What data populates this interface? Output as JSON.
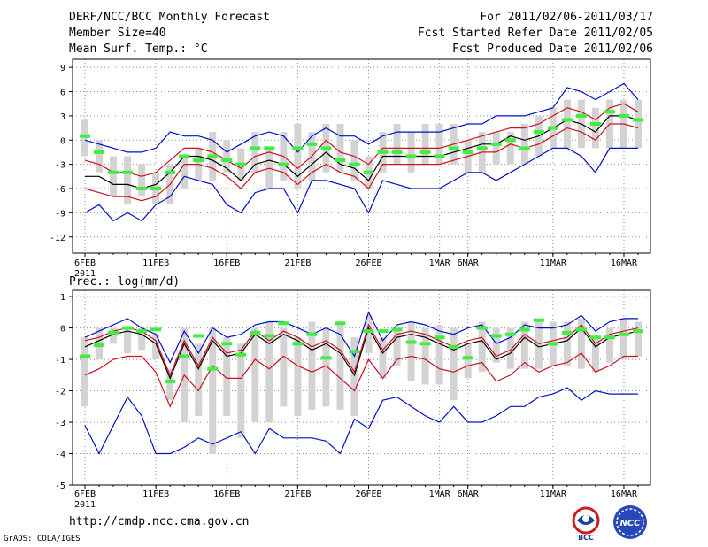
{
  "header": {
    "title": "DERF/NCC/BCC Monthly Forecast",
    "member_size": "Member Size=40",
    "variable": "Mean Surf. Temp.: °C",
    "period": "For 2011/02/06-2011/03/17",
    "refer_date": "Fcst Started Refer Date 2011/02/05",
    "produced_date": "Fcst Produced Date 2011/02/06"
  },
  "footer": {
    "url": "http://cmdp.ncc.cma.gov.cn",
    "grads": "GrADS: COLA/IGES",
    "logo_left_text": "BCC",
    "logo_right_text": "NCC"
  },
  "colors": {
    "grid": "#8c8c8c",
    "box": "#d3d3d3",
    "mean": "#000000",
    "inner": "#d01020",
    "outer": "#0010c8",
    "obs": "#40ee40"
  },
  "chart_data": [
    {
      "type": "line",
      "title": "Mean Surf. Temp.: °C",
      "ylim": [
        -14,
        10
      ],
      "yticks": [
        9,
        6,
        3,
        0,
        -3,
        -6,
        -9,
        -12
      ],
      "x_day_range": [
        0,
        40
      ],
      "xtick_days": [
        0,
        5,
        10,
        15,
        20,
        25,
        27,
        33,
        38
      ],
      "xtick_labels": [
        "6FEB",
        "11FEB",
        "16FEB",
        "21FEB",
        "26FEB",
        "1MAR",
        "6MAR",
        "11MAR",
        "16MAR"
      ],
      "xtick_year": "2011",
      "days": [
        0,
        1,
        2,
        3,
        4,
        5,
        6,
        7,
        8,
        9,
        10,
        11,
        12,
        13,
        14,
        15,
        16,
        17,
        18,
        19,
        20,
        21,
        22,
        23,
        24,
        25,
        26,
        27,
        28,
        29,
        30,
        31,
        32,
        33,
        34,
        35,
        36,
        37,
        38,
        39
      ],
      "series": [
        {
          "name": "mean",
          "values": [
            -4.5,
            -4.5,
            -5.5,
            -5.5,
            -6,
            -5.5,
            -4,
            -2,
            -2,
            -2.5,
            -3.5,
            -5,
            -3,
            -2.5,
            -3,
            -4.5,
            -3,
            -1.5,
            -3,
            -3.5,
            -5,
            -2,
            -2,
            -2,
            -2,
            -2,
            -1.5,
            -1,
            -0.5,
            -0.5,
            0.5,
            0,
            0.5,
            1.5,
            2.5,
            2,
            1,
            3,
            3,
            2.5
          ]
        },
        {
          "name": "upper",
          "values": [
            -2.5,
            -3,
            -4,
            -4,
            -4.5,
            -4,
            -2.5,
            -1,
            -1,
            -1.5,
            -2.5,
            -3.5,
            -2,
            -1.5,
            -2,
            -3.5,
            -2,
            0,
            -1.5,
            -2,
            -3,
            -1,
            -1,
            -1,
            -1,
            -1,
            -0.5,
            0,
            0.5,
            1,
            1.5,
            1.5,
            2,
            3,
            4,
            3.5,
            2.5,
            4,
            4.5,
            3.5
          ]
        },
        {
          "name": "lower",
          "values": [
            -6,
            -6.5,
            -7,
            -7,
            -7.5,
            -7,
            -5.5,
            -3,
            -3,
            -3.5,
            -4.5,
            -6,
            -4,
            -3.5,
            -4,
            -5.5,
            -4,
            -3,
            -4,
            -4.5,
            -6,
            -3,
            -3,
            -3,
            -3,
            -3,
            -2.5,
            -2,
            -1.5,
            -1.5,
            -0.5,
            -1,
            -0.5,
            0.5,
            1.5,
            1,
            0,
            2,
            2,
            1.5
          ]
        },
        {
          "name": "max",
          "values": [
            0,
            -0.5,
            -1,
            -1.5,
            -1.5,
            -1,
            1,
            0.5,
            0.5,
            0,
            -1.5,
            -0.5,
            0.5,
            1,
            0.5,
            -1.5,
            0.5,
            1.5,
            0.5,
            0.5,
            -0.5,
            0.5,
            1,
            1,
            1,
            1,
            1.5,
            2,
            2,
            3,
            3,
            3,
            3.5,
            4,
            6.5,
            6,
            5,
            6,
            7,
            5
          ]
        },
        {
          "name": "min",
          "values": [
            -9,
            -8,
            -10,
            -9,
            -10,
            -8,
            -7,
            -4.5,
            -5,
            -5.5,
            -8,
            -9,
            -6.5,
            -6,
            -6,
            -9,
            -5,
            -5,
            -5.5,
            -6,
            -9,
            -5,
            -5.5,
            -6,
            -6,
            -6,
            -5,
            -4,
            -4,
            -5,
            -4,
            -3,
            -2,
            -1,
            -1,
            -2,
            -4,
            -1,
            -1,
            -1
          ]
        },
        {
          "name": "obs",
          "values": [
            0.5,
            -1.5,
            -4,
            -4,
            -6,
            -6,
            -4,
            -2,
            -2.5,
            -2,
            -2.5,
            -3,
            -1,
            -1,
            -3,
            -1,
            -0.5,
            -1,
            -2.5,
            -3,
            -4,
            -1.5,
            -1.5,
            -2,
            -1.5,
            -2,
            -1,
            -1.5,
            -1,
            -0.5,
            0,
            -1,
            1,
            1.5,
            2.5,
            3,
            2,
            3.5,
            3,
            2.5
          ]
        }
      ],
      "boxes": [
        [
          -2,
          2.5
        ],
        [
          -4,
          0
        ],
        [
          -7,
          -2
        ],
        [
          -8,
          -2
        ],
        [
          -7,
          -3
        ],
        [
          -8,
          -4
        ],
        [
          -8,
          -3
        ],
        [
          -6,
          -2
        ],
        [
          -5,
          -1
        ],
        [
          -5,
          1
        ],
        [
          -4,
          0
        ],
        [
          -5,
          -1
        ],
        [
          -4,
          1
        ],
        [
          -6,
          -1
        ],
        [
          -5,
          1
        ],
        [
          -6,
          2
        ],
        [
          -5,
          1
        ],
        [
          -4,
          2
        ],
        [
          -4,
          2
        ],
        [
          -5,
          0
        ],
        [
          -6,
          -2
        ],
        [
          -4,
          1
        ],
        [
          -3,
          2
        ],
        [
          -4,
          1
        ],
        [
          -3,
          2
        ],
        [
          -3,
          2
        ],
        [
          -3,
          2
        ],
        [
          -4,
          0
        ],
        [
          -4,
          1
        ],
        [
          -3,
          1
        ],
        [
          -3,
          1
        ],
        [
          -3,
          2
        ],
        [
          -2,
          3
        ],
        [
          -1,
          4
        ],
        [
          -1,
          5
        ],
        [
          -1,
          5
        ],
        [
          -1,
          4
        ],
        [
          -1,
          5
        ],
        [
          -1,
          5
        ],
        [
          -1,
          5
        ]
      ]
    },
    {
      "type": "line",
      "title": "Prec.: log(mm/d)",
      "ylim": [
        -5,
        1.2
      ],
      "yticks": [
        1,
        0,
        -1,
        -2,
        -3,
        -4,
        -5
      ],
      "x_day_range": [
        0,
        40
      ],
      "xtick_days": [
        0,
        5,
        10,
        15,
        20,
        25,
        27,
        33,
        38
      ],
      "xtick_labels": [
        "6FEB",
        "11FEB",
        "16FEB",
        "21FEB",
        "26FEB",
        "1MAR",
        "6MAR",
        "11MAR",
        "16MAR"
      ],
      "xtick_year": "2011",
      "days": [
        0,
        1,
        2,
        3,
        4,
        5,
        6,
        7,
        8,
        9,
        10,
        11,
        12,
        13,
        14,
        15,
        16,
        17,
        18,
        19,
        20,
        21,
        22,
        23,
        24,
        25,
        26,
        27,
        28,
        29,
        30,
        31,
        32,
        33,
        34,
        35,
        36,
        37,
        38,
        39
      ],
      "series": [
        {
          "name": "mean",
          "values": [
            -0.6,
            -0.4,
            -0.2,
            -0.1,
            -0.2,
            -0.5,
            -1.6,
            -0.5,
            -1.3,
            -0.4,
            -0.9,
            -0.8,
            -0.2,
            -0.5,
            -0.2,
            -0.4,
            -0.7,
            -0.5,
            -0.8,
            -1.5,
            0,
            -0.8,
            -0.3,
            -0.2,
            -0.3,
            -0.5,
            -0.7,
            -0.5,
            -0.4,
            -1,
            -0.8,
            -0.3,
            -0.6,
            -0.5,
            -0.4,
            0,
            -0.6,
            -0.3,
            -0.2,
            -0.1
          ]
        },
        {
          "name": "upper",
          "values": [
            -0.4,
            -0.3,
            -0.1,
            0,
            -0.1,
            -0.4,
            -1.5,
            -0.4,
            -1.2,
            -0.3,
            -0.8,
            -0.7,
            -0.1,
            -0.4,
            -0.1,
            -0.3,
            -0.6,
            -0.4,
            -0.7,
            -1.4,
            0.1,
            -0.7,
            -0.2,
            -0.1,
            -0.2,
            -0.4,
            -0.6,
            -0.4,
            -0.3,
            -0.9,
            -0.7,
            -0.2,
            -0.5,
            -0.4,
            -0.3,
            0.1,
            -0.5,
            -0.2,
            -0.1,
            0
          ]
        },
        {
          "name": "lower",
          "values": [
            -1.5,
            -1.3,
            -1.0,
            -0.9,
            -0.9,
            -1.4,
            -2.5,
            -1.5,
            -2.0,
            -1.2,
            -1.6,
            -1.6,
            -1.0,
            -1.3,
            -0.9,
            -1.2,
            -1.4,
            -1.2,
            -1.6,
            -2.0,
            -1.0,
            -1.6,
            -1.0,
            -0.9,
            -1.0,
            -1.3,
            -1.4,
            -1.2,
            -1.1,
            -1.7,
            -1.5,
            -1.1,
            -1.4,
            -1.2,
            -1.1,
            -0.8,
            -1.4,
            -1.2,
            -0.9,
            -0.9
          ]
        },
        {
          "name": "max",
          "values": [
            -0.3,
            -0.1,
            0.1,
            0.3,
            0,
            -0.2,
            -1.1,
            -0.1,
            -0.8,
            0,
            -0.3,
            -0.2,
            0.1,
            0.2,
            0.2,
            0,
            -0.2,
            0,
            -0.2,
            -0.9,
            0.5,
            -0.4,
            0.1,
            0.2,
            0.1,
            -0.1,
            -0.2,
            0,
            0.1,
            -0.5,
            -0.3,
            0.1,
            0,
            0,
            0.1,
            0.4,
            -0.1,
            0.2,
            0.3,
            0.3
          ]
        },
        {
          "name": "min",
          "values": [
            -3.1,
            -4.0,
            -3.1,
            -2.2,
            -2.8,
            -4.0,
            -4.0,
            -3.8,
            -3.5,
            -3.7,
            -3.5,
            -3.3,
            -4.0,
            -3.2,
            -3.5,
            -3.5,
            -3.5,
            -3.6,
            -4.0,
            -2.9,
            -3.2,
            -2.3,
            -2.2,
            -2.5,
            -2.8,
            -3.0,
            -2.5,
            -3.0,
            -3.0,
            -2.8,
            -2.5,
            -2.5,
            -2.2,
            -2.1,
            -1.9,
            -2.3,
            -2.0,
            -2.1,
            -2.1,
            -2.1
          ]
        },
        {
          "name": "obs",
          "values": [
            -0.9,
            -0.55,
            -0.15,
            0,
            -0.1,
            -0.05,
            -1.7,
            -0.9,
            -0.25,
            -1.3,
            -0.5,
            -0.85,
            -0.15,
            -0.25,
            0.15,
            -0.5,
            -0.2,
            -0.95,
            0.15,
            -0.75,
            -0.1,
            -0.1,
            -0.05,
            -0.45,
            -0.5,
            -0.3,
            -0.6,
            -0.95,
            0,
            -0.25,
            -0.2,
            -0.05,
            0.25,
            -0.5,
            -0.15,
            -0.05,
            -0.3,
            -0.3,
            -0.2,
            -0.1
          ]
        }
      ],
      "boxes": [
        [
          -2.5,
          -0.3
        ],
        [
          -1.0,
          0
        ],
        [
          -0.5,
          0
        ],
        [
          -0.8,
          0
        ],
        [
          -0.7,
          0
        ],
        [
          -1.0,
          -0.2
        ],
        [
          -2.3,
          -1.3
        ],
        [
          -3.0,
          0
        ],
        [
          -2.8,
          -0.5
        ],
        [
          -4.0,
          0
        ],
        [
          -2.8,
          -0.3
        ],
        [
          -3.5,
          -0.5
        ],
        [
          -3.0,
          0
        ],
        [
          -3.0,
          0.2
        ],
        [
          -2.5,
          0
        ],
        [
          -2.8,
          -0.3
        ],
        [
          -2.6,
          0.2
        ],
        [
          -2.5,
          0
        ],
        [
          -2.6,
          0.2
        ],
        [
          -2.8,
          -0.3
        ],
        [
          -0.8,
          0.4
        ],
        [
          -1.6,
          -0.3
        ],
        [
          -1.2,
          0
        ],
        [
          -1.7,
          0.2
        ],
        [
          -1.8,
          0
        ],
        [
          -1.8,
          0.1
        ],
        [
          -2.3,
          0
        ],
        [
          -1.6,
          -0.5
        ],
        [
          -1.4,
          0.2
        ],
        [
          -1.1,
          0
        ],
        [
          -1.3,
          0
        ],
        [
          -1.3,
          0.2
        ],
        [
          -1.3,
          0.2
        ],
        [
          -1.2,
          0.2
        ],
        [
          -1.2,
          0.2
        ],
        [
          -1.3,
          0.3
        ],
        [
          -1.4,
          -0.3
        ],
        [
          -1.1,
          0
        ],
        [
          -1.0,
          0.3
        ],
        [
          -0.9,
          0.2
        ]
      ]
    }
  ]
}
